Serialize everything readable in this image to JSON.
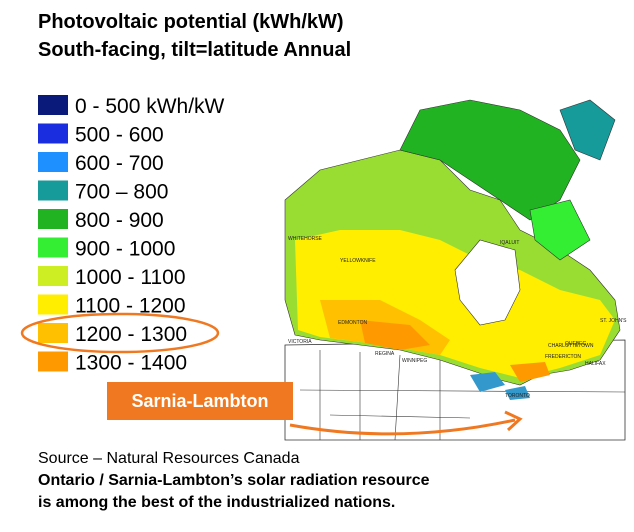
{
  "header": {
    "title_line1": "Photovoltaic potential (kWh/kW)",
    "title_line2": "South-facing, tilt=latitude Annual"
  },
  "legend": [
    {
      "label": "0 - 500 kWh/kW",
      "color": "#0a1a7a"
    },
    {
      "label": "500 - 600",
      "color": "#1a2ee0"
    },
    {
      "label": "600 - 700",
      "color": "#1e90ff"
    },
    {
      "label": "700 – 800",
      "color": "#169a9a"
    },
    {
      "label": "800 - 900",
      "color": "#22b322"
    },
    {
      "label": "900 - 1000",
      "color": "#33ee33"
    },
    {
      "label": "1000 - 1100",
      "color": "#ccee22"
    },
    {
      "label": "1100 - 1200",
      "color": "#ffee00"
    },
    {
      "label": "1200 - 1300",
      "color": "#ffc000"
    },
    {
      "label": "1300 - 1400",
      "color": "#ff9900"
    }
  ],
  "highlight": {
    "label": "Sarnia-Lambton"
  },
  "map": {
    "cities": [
      "WHITEHORSE",
      "YELLOWKNIFE",
      "IQALUIT",
      "VICTORIA",
      "EDMONTON",
      "REGINA",
      "WINNIPEG",
      "TORONTO",
      "QUEBEC",
      "FREDERICTON",
      "CHARLOTTETOWN",
      "HALIFAX",
      "ST. JOHN'S"
    ]
  },
  "footer": {
    "source": "Source – Natural Resources Canada",
    "statement_line1": "Ontario / Sarnia-Lambton’s solar radiation resource",
    "statement_line2": "is among the best of the industrialized nations."
  }
}
